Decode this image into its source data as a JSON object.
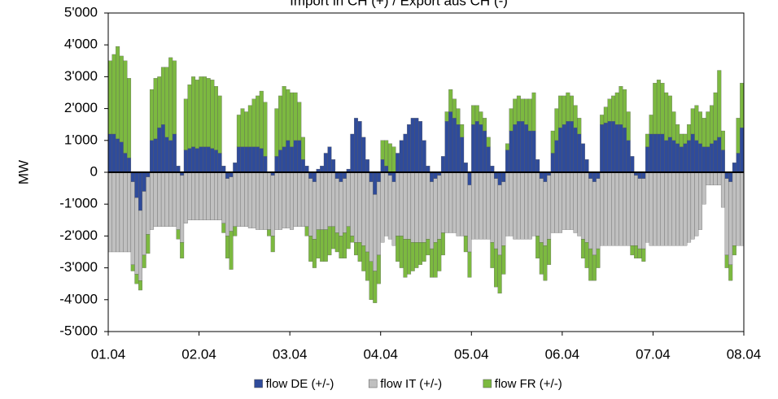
{
  "chart_data": {
    "type": "stacked-bar",
    "title": "Import in CH (+) / Export aus CH (-)",
    "y_label": "MW",
    "xlim": [
      0,
      168
    ],
    "xticks": [
      {
        "value": 0,
        "label": "01.04"
      },
      {
        "value": 24,
        "label": "02.04"
      },
      {
        "value": 48,
        "label": "03.04"
      },
      {
        "value": 72,
        "label": "04.04"
      },
      {
        "value": 96,
        "label": "05.04"
      },
      {
        "value": 120,
        "label": "06.04"
      },
      {
        "value": 144,
        "label": "07.04"
      },
      {
        "value": 168,
        "label": "08.04"
      }
    ],
    "ylim": [
      -5000,
      5000
    ],
    "yticks": [
      {
        "value": 5000,
        "label": "5'000"
      },
      {
        "value": 4000,
        "label": "4'000"
      },
      {
        "value": 3000,
        "label": "3'000"
      },
      {
        "value": 2000,
        "label": "2'000"
      },
      {
        "value": 1000,
        "label": "1'000"
      },
      0,
      {
        "value": -1000,
        "label": "-1'000"
      },
      {
        "value": -2000,
        "label": "-2'000"
      },
      {
        "value": -3000,
        "label": "-3'000"
      },
      {
        "value": -4000,
        "label": "-4'000"
      },
      {
        "value": -5000,
        "label": "-5'000"
      }
    ],
    "legend": "bottom",
    "x": [
      0,
      1,
      2,
      3,
      4,
      5,
      6,
      7,
      8,
      9,
      10,
      11,
      12,
      13,
      14,
      15,
      16,
      17,
      18,
      19,
      20,
      21,
      22,
      23,
      24,
      25,
      26,
      27,
      28,
      29,
      30,
      31,
      32,
      33,
      34,
      35,
      36,
      37,
      38,
      39,
      40,
      41,
      42,
      43,
      44,
      45,
      46,
      47,
      48,
      49,
      50,
      51,
      52,
      53,
      54,
      55,
      56,
      57,
      58,
      59,
      60,
      61,
      62,
      63,
      64,
      65,
      66,
      67,
      68,
      69,
      70,
      71,
      72,
      73,
      74,
      75,
      76,
      77,
      78,
      79,
      80,
      81,
      82,
      83,
      84,
      85,
      86,
      87,
      88,
      89,
      90,
      91,
      92,
      93,
      94,
      95,
      96,
      97,
      98,
      99,
      100,
      101,
      102,
      103,
      104,
      105,
      106,
      107,
      108,
      109,
      110,
      111,
      112,
      113,
      114,
      115,
      116,
      117,
      118,
      119,
      120,
      121,
      122,
      123,
      124,
      125,
      126,
      127,
      128,
      129,
      130,
      131,
      132,
      133,
      134,
      135,
      136,
      137,
      138,
      139,
      140,
      141,
      142,
      143,
      144,
      145,
      146,
      147,
      148,
      149,
      150,
      151,
      152,
      153,
      154,
      155,
      156,
      157,
      158,
      159,
      160,
      161,
      162,
      163,
      164,
      165,
      166,
      167
    ],
    "series": [
      {
        "name": "flow DE (+/-)",
        "color": "#2f4b9a",
        "values": [
          1200,
          1200,
          1050,
          950,
          600,
          450,
          -300,
          -800,
          -1200,
          -600,
          -150,
          1000,
          1050,
          1400,
          1500,
          1100,
          1000,
          1200,
          200,
          -100,
          700,
          750,
          800,
          750,
          800,
          800,
          800,
          750,
          700,
          600,
          200,
          -200,
          -150,
          300,
          800,
          800,
          800,
          800,
          800,
          800,
          750,
          500,
          0,
          -100,
          500,
          700,
          800,
          1000,
          800,
          1000,
          1000,
          400,
          200,
          -200,
          -300,
          100,
          200,
          600,
          800,
          400,
          -200,
          -300,
          -200,
          100,
          1200,
          1700,
          1600,
          1100,
          400,
          -300,
          -700,
          -300,
          400,
          200,
          -100,
          -300,
          600,
          1000,
          1200,
          1500,
          1700,
          1700,
          1600,
          1000,
          200,
          -300,
          -200,
          -100,
          500,
          1600,
          1900,
          1700,
          1500,
          1100,
          300,
          -400,
          1500,
          1600,
          1500,
          1300,
          800,
          200,
          -200,
          -400,
          -300,
          700,
          1300,
          1500,
          1600,
          1600,
          1500,
          1300,
          1300,
          400,
          -200,
          -300,
          -100,
          600,
          1000,
          1400,
          1500,
          1600,
          1600,
          1400,
          1200,
          900,
          400,
          -200,
          -300,
          -200,
          1500,
          1550,
          1600,
          1600,
          1500,
          1500,
          1400,
          1000,
          500,
          -100,
          -200,
          -200,
          800,
          1200,
          1200,
          1200,
          1200,
          1000,
          1100,
          1000,
          900,
          800,
          900,
          1000,
          1200,
          1000,
          900,
          800,
          800,
          900,
          1000,
          1100,
          700,
          -200,
          -300,
          300,
          600,
          1400
        ]
      },
      {
        "name": "flow IT (+/-)",
        "color": "#c0c0c0",
        "values": [
          -2500,
          -2500,
          -2500,
          -2500,
          -2500,
          -2500,
          -2600,
          -2400,
          -2200,
          -2000,
          -1800,
          -1800,
          -1700,
          -1700,
          -1700,
          -1700,
          -1700,
          -1700,
          -1800,
          -2100,
          -1600,
          -1500,
          -1500,
          -1500,
          -1500,
          -1500,
          -1500,
          -1500,
          -1500,
          -1500,
          -1600,
          -1800,
          -1700,
          -1700,
          -1700,
          -1700,
          -1700,
          -1750,
          -1750,
          -1800,
          -1800,
          -1800,
          -1800,
          -1900,
          -1800,
          -1800,
          -1750,
          -1750,
          -1800,
          -1700,
          -1700,
          -1700,
          -1700,
          -1800,
          -1800,
          -1800,
          -1800,
          -1800,
          -1700,
          -1700,
          -1700,
          -1700,
          -1700,
          -1700,
          -2000,
          -2200,
          -2200,
          -2300,
          -2500,
          -2500,
          -2400,
          -2300,
          -2200,
          -2000,
          -2000,
          -2000,
          -2000,
          -2000,
          -2100,
          -2100,
          -2200,
          -2200,
          -2200,
          -2200,
          -2100,
          -2100,
          -2000,
          -2000,
          -1900,
          -1900,
          -1900,
          -1900,
          -2000,
          -2000,
          -2000,
          -2100,
          -2100,
          -2100,
          -2100,
          -2100,
          -2100,
          -2200,
          -2200,
          -2200,
          -2000,
          -2000,
          -2000,
          -2100,
          -2100,
          -2100,
          -2100,
          -2100,
          -2000,
          -2000,
          -2000,
          -2000,
          -2000,
          -1900,
          -1900,
          -1900,
          -1800,
          -1800,
          -1800,
          -1900,
          -2000,
          -2100,
          -2200,
          -2200,
          -2300,
          -2200,
          -2300,
          -2300,
          -2300,
          -2300,
          -2300,
          -2300,
          -2300,
          -2300,
          -2300,
          -2200,
          -2200,
          -2200,
          -2200,
          -2300,
          -2300,
          -2300,
          -2300,
          -2300,
          -2300,
          -2300,
          -2300,
          -2300,
          -2300,
          -2200,
          -2100,
          -2000,
          -1800,
          -1000,
          -400,
          -400,
          -400,
          -400,
          -1100,
          -2400,
          -2600,
          -2300,
          -2300,
          -2300
        ]
      },
      {
        "name": "flow FR (+/-)",
        "color": "#7cb940",
        "values": [
          2300,
          2500,
          2900,
          2700,
          2900,
          2500,
          -200,
          -300,
          -300,
          -400,
          -600,
          1600,
          1900,
          1600,
          1800,
          2200,
          2600,
          2300,
          -300,
          -500,
          1600,
          2000,
          2200,
          2150,
          2200,
          2200,
          2150,
          2150,
          2000,
          1800,
          -300,
          -700,
          -1200,
          -300,
          1000,
          1200,
          1100,
          1300,
          1500,
          1600,
          1800,
          1700,
          -200,
          -500,
          1500,
          1700,
          1900,
          1600,
          1700,
          1500,
          1200,
          700,
          -300,
          -800,
          -900,
          -900,
          -1000,
          -1000,
          -900,
          -700,
          -600,
          -700,
          -800,
          -700,
          -200,
          -400,
          -600,
          -800,
          -900,
          -1200,
          -1000,
          -900,
          600,
          800,
          900,
          800,
          -800,
          -1000,
          -1200,
          -1100,
          -900,
          -800,
          -700,
          -600,
          -500,
          -900,
          -1100,
          -1000,
          -700,
          300,
          700,
          600,
          500,
          400,
          -500,
          -800,
          600,
          500,
          400,
          400,
          300,
          -800,
          -1200,
          -1200,
          -900,
          200,
          700,
          800,
          800,
          700,
          800,
          1000,
          1200,
          -700,
          -1000,
          -1100,
          -800,
          700,
          1000,
          1000,
          900,
          900,
          800,
          700,
          500,
          -600,
          -800,
          -1000,
          -800,
          -600,
          300,
          500,
          700,
          800,
          1000,
          1200,
          1200,
          900,
          -300,
          -400,
          -300,
          -400,
          400,
          600,
          1600,
          1700,
          1600,
          1500,
          1300,
          900,
          600,
          400,
          300,
          500,
          800,
          1100,
          1000,
          900,
          1100,
          1200,
          1500,
          2100,
          600,
          -400,
          -500,
          -300,
          1100,
          1400
        ]
      }
    ]
  }
}
